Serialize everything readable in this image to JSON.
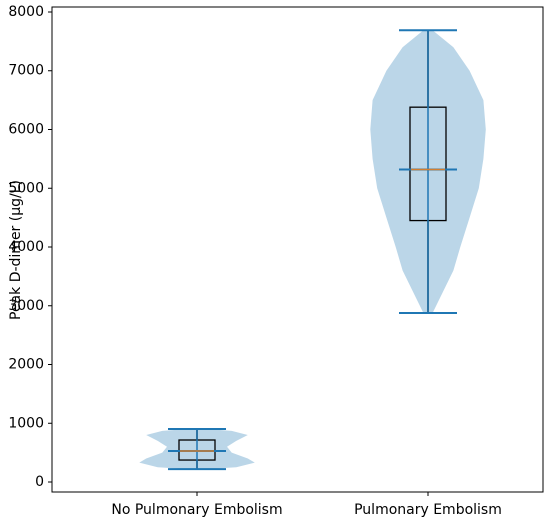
{
  "chart_data": {
    "type": "violin",
    "ylabel": "Peak D-dimer (μg/L)",
    "categories": [
      "No Pulmonary Embolism",
      "Pulmonary Embolism"
    ],
    "ylim": [
      -170,
      8085
    ],
    "yticks": [
      0,
      1000,
      2000,
      3000,
      4000,
      5000,
      6000,
      7000,
      8000
    ],
    "violin_color": "#1f77b4",
    "box_color": "#000000",
    "median_color": "#ff7f0e",
    "series": [
      {
        "min": 220,
        "q1": 374,
        "median": 528,
        "q3": 715,
        "max": 902,
        "density": {
          "y": [
            220,
            250,
            330,
            400,
            500,
            600,
            700,
            800,
            870,
            902
          ],
          "width": [
            0.04,
            0.17,
            0.25,
            0.22,
            0.15,
            0.13,
            0.17,
            0.22,
            0.15,
            0.04
          ]
        }
      },
      {
        "min": 2877,
        "q1": 4450,
        "median": 5320,
        "q3": 6380,
        "max": 7690,
        "density": {
          "y": [
            2877,
            3200,
            3600,
            4000,
            4500,
            5000,
            5500,
            6000,
            6500,
            7000,
            7400,
            7690
          ],
          "width": [
            0.02,
            0.06,
            0.11,
            0.14,
            0.18,
            0.22,
            0.24,
            0.25,
            0.24,
            0.18,
            0.11,
            0.02
          ]
        }
      }
    ]
  }
}
